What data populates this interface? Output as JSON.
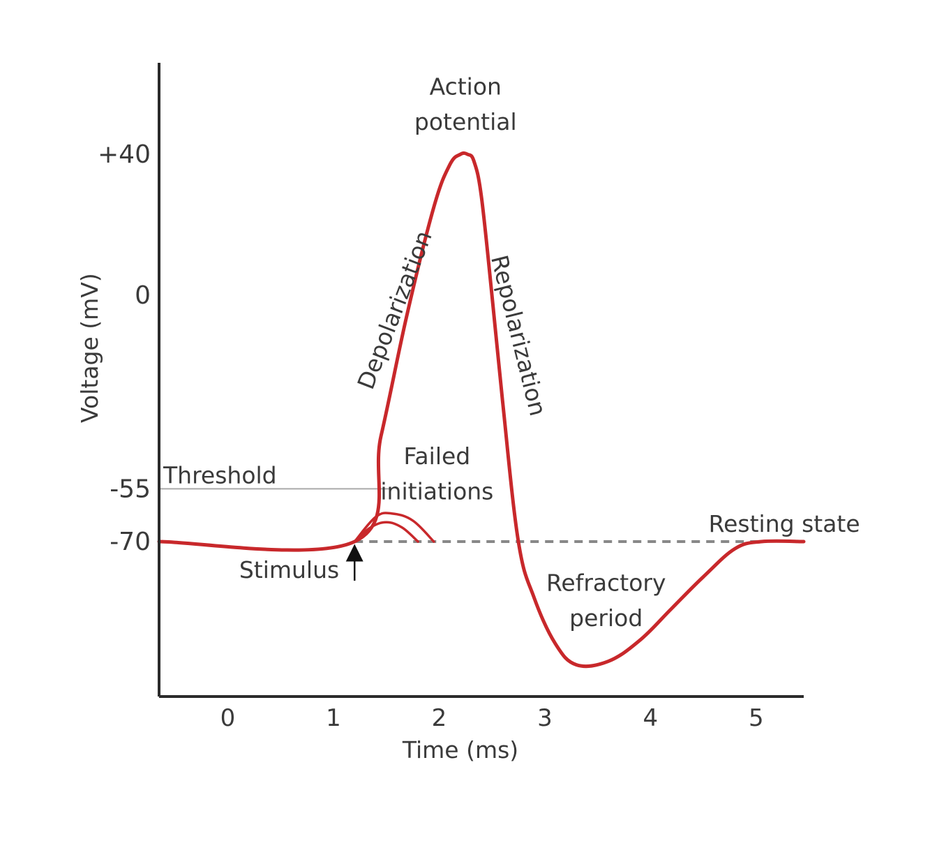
{
  "chart_data": {
    "type": "line",
    "title": "",
    "xlabel": "Time (ms)",
    "ylabel": "Voltage (mV)",
    "x_ticks": [
      "0",
      "1",
      "2",
      "3",
      "4",
      "5"
    ],
    "y_ticks": [
      {
        "value": 40,
        "label": "+40"
      },
      {
        "value": 0,
        "label": "0"
      },
      {
        "value": -55,
        "label": "-55"
      },
      {
        "value": -70,
        "label": "-70"
      }
    ],
    "xlim": [
      -0.65,
      5.45
    ],
    "ylim": [
      -114,
      66
    ],
    "grid": false,
    "threshold": {
      "value": -55,
      "label": "Threshold"
    },
    "resting": {
      "value": -70,
      "label": "Resting state"
    },
    "series": [
      {
        "role": "action-potential",
        "color": "#c8282b",
        "x": [
          -0.65,
          1.2,
          1.45,
          1.7,
          1.95,
          2.1,
          2.2,
          2.27,
          2.33,
          2.4,
          2.5,
          2.6,
          2.75,
          2.9,
          3.1,
          3.3,
          3.6,
          3.9,
          4.2,
          4.5,
          4.8,
          5.05,
          5.45
        ],
        "y": [
          -70,
          -70,
          -40,
          -5,
          25,
          37,
          40,
          40,
          38,
          28,
          0,
          -30,
          -70,
          -86,
          -99,
          -105,
          -104,
          -98,
          -89,
          -80,
          -72,
          -70,
          -70
        ]
      },
      {
        "role": "failed-initiation-1",
        "color": "#c8282b",
        "x": [
          1.2,
          1.35,
          1.5,
          1.65,
          1.8
        ],
        "y": [
          -70,
          -66,
          -64.5,
          -66,
          -70
        ]
      },
      {
        "role": "failed-initiation-2",
        "color": "#c8282b",
        "x": [
          1.2,
          1.4,
          1.55,
          1.75,
          1.95
        ],
        "y": [
          -70,
          -63,
          -62,
          -64,
          -70
        ]
      }
    ],
    "annotations": {
      "action_potential": [
        "Action",
        "potential"
      ],
      "depolarization": "Depolarization",
      "repolarization": "Repolarization",
      "failed_initiations": [
        "Failed",
        "initiations"
      ],
      "refractory_period": [
        "Refractory",
        "period"
      ],
      "stimulus": {
        "label": "Stimulus",
        "x": 1.2
      }
    },
    "colors": {
      "curve": "#c8282b",
      "axis": "#2b2b2b",
      "threshold_line": "#aaaaaa",
      "resting_dash": "#888888"
    }
  }
}
